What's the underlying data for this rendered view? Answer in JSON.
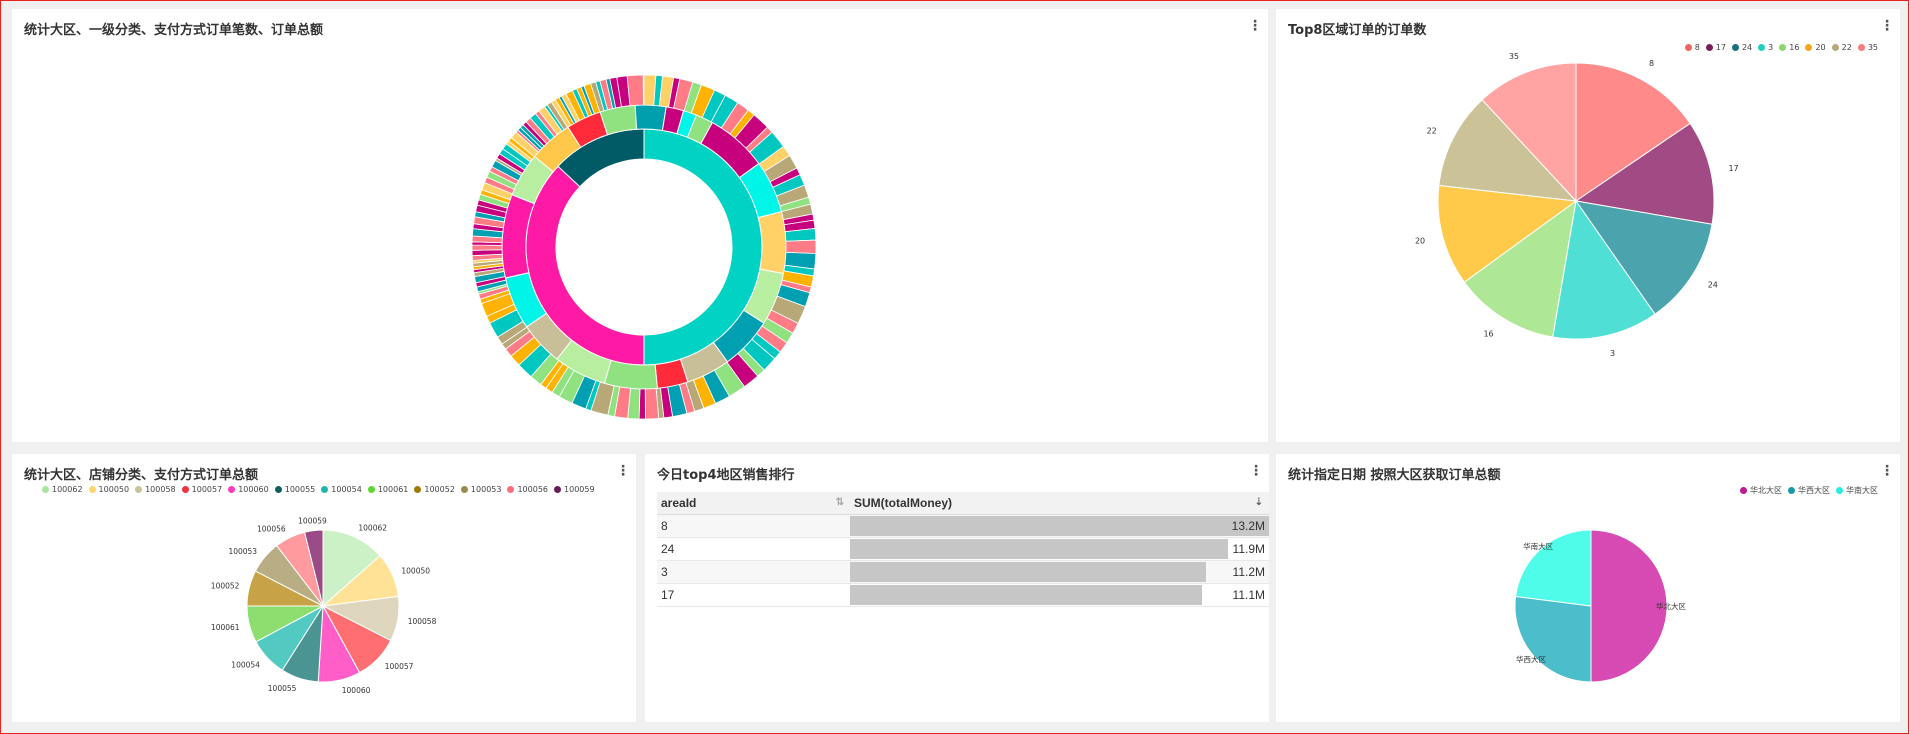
{
  "panel1": {
    "title": "统计大区、一级分类、支付方式订单笔数、订单总额",
    "menu": "⋮"
  },
  "panel2": {
    "title": "Top8区域订单的订单数",
    "menu": "⋮",
    "legend": [
      {
        "label": "8",
        "color": "#f26464"
      },
      {
        "label": "17",
        "color": "#7a1f5c"
      },
      {
        "label": "24",
        "color": "#1a6e80"
      },
      {
        "label": "3",
        "color": "#1ecec0"
      },
      {
        "label": "16",
        "color": "#8bd46e"
      },
      {
        "label": "20",
        "color": "#f7a61c"
      },
      {
        "label": "22",
        "color": "#b8a878"
      },
      {
        "label": "35",
        "color": "#fb7c7c"
      }
    ]
  },
  "panel3": {
    "title": "统计大区、店铺分类、支付方式订单总额",
    "menu": "⋮",
    "legend": [
      {
        "label": "100062",
        "color": "#a8e6a0"
      },
      {
        "label": "100050",
        "color": "#ffd46e"
      },
      {
        "label": "100058",
        "color": "#c9c29a"
      },
      {
        "label": "100057",
        "color": "#ee3340"
      },
      {
        "label": "100060",
        "color": "#ff3bbf"
      },
      {
        "label": "100055",
        "color": "#0e5f5f"
      },
      {
        "label": "100054",
        "color": "#1fb8b0"
      },
      {
        "label": "100061",
        "color": "#5ad62e"
      },
      {
        "label": "100052",
        "color": "#a17a00"
      },
      {
        "label": "100053",
        "color": "#9a8a4e"
      },
      {
        "label": "100056",
        "color": "#ff6f7a"
      },
      {
        "label": "100059",
        "color": "#6a1a5a"
      }
    ]
  },
  "panel4": {
    "title": "今日top4地区销售排行",
    "menu": "⋮",
    "columns": [
      "areaId",
      "SUM(totalMoney)"
    ],
    "rows": [
      {
        "areaId": "8",
        "value": "13.2M",
        "fraction": 1.0
      },
      {
        "areaId": "24",
        "value": "11.9M",
        "fraction": 0.9015
      },
      {
        "areaId": "3",
        "value": "11.2M",
        "fraction": 0.8485
      },
      {
        "areaId": "17",
        "value": "11.1M",
        "fraction": 0.8409
      }
    ]
  },
  "panel5": {
    "title": "统计指定日期 按照大区获取订单总额",
    "menu": "⋮",
    "legend": [
      {
        "label": "华北大区",
        "color": "#c0188f"
      },
      {
        "label": "华西大区",
        "color": "#1a97a8"
      },
      {
        "label": "华南大区",
        "color": "#22efe0"
      }
    ]
  },
  "chart_data": [
    {
      "type": "pie",
      "subtype": "sunburst",
      "title": "统计大区、一级分类、支付方式订单笔数、订单总额",
      "inner_ring": [
        {
          "share": 0.5,
          "color": "#00d3c4"
        },
        {
          "share": 0.37,
          "color": "#ff1aa6"
        },
        {
          "share": 0.13,
          "color": "#005b66"
        }
      ],
      "middle_ring": [
        {
          "share": 0.08,
          "color": "#8fe27f"
        },
        {
          "share": 0.07,
          "color": "#c7007d"
        },
        {
          "share": 0.06,
          "color": "#00f5e9"
        },
        {
          "share": 0.07,
          "color": "#ffd166"
        },
        {
          "share": 0.06,
          "color": "#b8eea0"
        },
        {
          "share": 0.06,
          "color": "#00a0b2"
        },
        {
          "share": 0.05,
          "color": "#c8be98"
        },
        {
          "share": 0.035,
          "color": "#ff2b3b"
        },
        {
          "share": 0.06,
          "color": "#8fe27f"
        },
        {
          "share": 0.06,
          "color": "#b8eea0"
        },
        {
          "share": 0.05,
          "color": "#c8be98"
        },
        {
          "share": 0.06,
          "color": "#00f5e9"
        },
        {
          "share": 0.095,
          "color": "#ff1aa6"
        },
        {
          "share": 0.05,
          "color": "#b8eea0"
        },
        {
          "share": 0.05,
          "color": "#ffc84a"
        },
        {
          "share": 0.04,
          "color": "#ff2b3b"
        },
        {
          "share": 0.04,
          "color": "#8fe27f"
        },
        {
          "share": 0.035,
          "color": "#009fae"
        },
        {
          "share": 0.02,
          "color": "#c7007d"
        },
        {
          "share": 0.015,
          "color": "#00f5e9"
        }
      ],
      "outer_ring_palette": [
        "#ffb300",
        "#00c8c0",
        "#b8a878",
        "#ff7c86",
        "#ffd166",
        "#00a0b2",
        "#8fe27f",
        "#c7007d",
        "#ffffff"
      ]
    },
    {
      "type": "pie",
      "title": "Top8区域订单的订单数",
      "categories": [
        "8",
        "17",
        "24",
        "3",
        "16",
        "20",
        "22",
        "35"
      ],
      "values": [
        15.5,
        12.2,
        12.6,
        12.4,
        12.3,
        11.8,
        11.3,
        11.9
      ],
      "colors": [
        "#ff8a8a",
        "#a24a84",
        "#4aa3ad",
        "#4fdfd4",
        "#aee896",
        "#ffc94a",
        "#cbc297",
        "#ffa3a3"
      ],
      "label_color": "#333333"
    },
    {
      "type": "pie",
      "title": "统计大区、店铺分类、支付方式订单总额",
      "categories": [
        "100062",
        "100050",
        "100058",
        "100057",
        "100060",
        "100055",
        "100054",
        "100061",
        "100052",
        "100053",
        "100056",
        "100059"
      ],
      "values": [
        13.5,
        9.5,
        9.5,
        9.5,
        9.0,
        8.0,
        8.2,
        7.8,
        7.6,
        7.0,
        6.5,
        3.9
      ],
      "colors": [
        "#cdf1c7",
        "#ffe295",
        "#ddd6bc",
        "#ff6f72",
        "#ff5ec9",
        "#4b9494",
        "#52c9c1",
        "#8cdf6f",
        "#c8a246",
        "#b9ae83",
        "#ff9a9f",
        "#9a4b87"
      ]
    },
    {
      "type": "table",
      "title": "今日top4地区销售排行",
      "columns": [
        "areaId",
        "SUM(totalMoney)"
      ],
      "rows": [
        [
          "8",
          "13.2M"
        ],
        [
          "24",
          "11.9M"
        ],
        [
          "3",
          "11.2M"
        ],
        [
          "17",
          "11.1M"
        ]
      ]
    },
    {
      "type": "pie",
      "title": "统计指定日期 按照大区获取订单总额",
      "categories": [
        "华北大区",
        "华西大区",
        "华南大区"
      ],
      "values": [
        50,
        27,
        23
      ],
      "colors": [
        "#d74ab3",
        "#4bbdcb",
        "#4ffbe9"
      ]
    }
  ]
}
